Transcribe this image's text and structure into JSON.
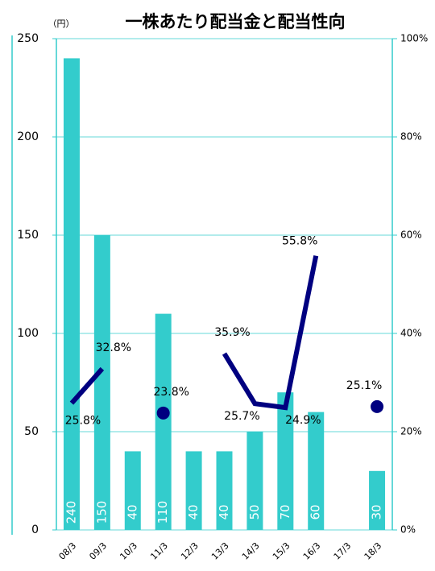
{
  "chart_data": {
    "type": "bar",
    "title": "一株あたり配当金と配当性向",
    "y_unit": "（円）",
    "categories": [
      "08/3",
      "09/3",
      "10/3",
      "11/3",
      "12/3",
      "13/3",
      "14/3",
      "15/3",
      "16/3",
      "17/3",
      "18/3"
    ],
    "series": [
      {
        "type": "bar",
        "color": "#33cccc",
        "values": [
          240,
          150,
          40,
          110,
          40,
          40,
          50,
          70,
          60,
          null,
          30
        ]
      },
      {
        "type": "line",
        "axis": "y2",
        "color": "#000080",
        "values": [
          25.8,
          32.8,
          null,
          23.8,
          null,
          35.9,
          25.7,
          24.9,
          55.8,
          null,
          25.1
        ],
        "value_labels": [
          "25.8%",
          "32.8%",
          null,
          "23.8%",
          null,
          "35.9%",
          "25.7%",
          "24.9%",
          "55.8%",
          null,
          "25.1%"
        ]
      }
    ],
    "ylim": [
      0,
      250
    ],
    "yticks": [
      0,
      50,
      100,
      150,
      200,
      250
    ],
    "y2lim": [
      0,
      100
    ],
    "y2ticks": [
      {
        "value": 0,
        "label": "0%"
      },
      {
        "value": 20,
        "label": "20%"
      },
      {
        "value": 40,
        "label": "40%"
      },
      {
        "value": 60,
        "label": "60%"
      },
      {
        "value": 80,
        "label": "80%"
      },
      {
        "value": 100,
        "label": "100%"
      }
    ],
    "grid": true
  }
}
